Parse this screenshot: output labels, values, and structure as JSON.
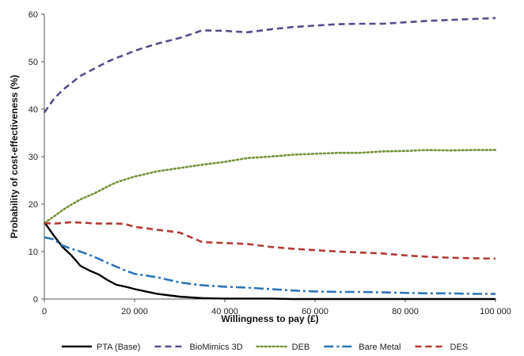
{
  "chart_data": {
    "type": "line",
    "title": "",
    "xlabel": "Willingness to pay (£)",
    "ylabel": "Probability of cost-effectiveness (%)",
    "xlim": [
      0,
      100000
    ],
    "ylim": [
      0,
      60
    ],
    "x_ticks": [
      0,
      20000,
      40000,
      60000,
      80000,
      100000
    ],
    "x_tick_labels": [
      "0",
      "20 000",
      "40 000",
      "60 000",
      "80 000",
      "100 000"
    ],
    "y_ticks": [
      0,
      10,
      20,
      30,
      40,
      50,
      60
    ],
    "y_tick_labels": [
      "0",
      "10",
      "20",
      "30",
      "40",
      "50",
      "60"
    ],
    "grid": false,
    "legend_position": "bottom",
    "x": [
      0,
      2000,
      4000,
      6000,
      8000,
      10000,
      12000,
      14000,
      16000,
      18000,
      20000,
      25000,
      30000,
      35000,
      40000,
      45000,
      50000,
      55000,
      60000,
      65000,
      70000,
      75000,
      80000,
      85000,
      90000,
      95000,
      100000
    ],
    "series": [
      {
        "name": "PTA (Base)",
        "color": "#000000",
        "dash": "solid",
        "values": [
          16.2,
          13.5,
          11.0,
          9.2,
          7.0,
          6.0,
          5.2,
          4.0,
          3.0,
          2.6,
          2.1,
          1.1,
          0.5,
          0.2,
          0.1,
          0.1,
          0.1,
          0.0,
          0.0,
          0.0,
          0.0,
          0.0,
          0.0,
          0.0,
          0.0,
          0.0,
          0.0
        ]
      },
      {
        "name": "BioMimics 3D",
        "color": "#5b4a8b",
        "dash": "dash",
        "values": [
          39.3,
          42.0,
          44.0,
          45.5,
          47.0,
          48.0,
          49.0,
          50.0,
          50.8,
          51.5,
          52.3,
          53.8,
          55.0,
          56.6,
          56.5,
          56.2,
          56.8,
          57.3,
          57.6,
          57.9,
          58.0,
          58.0,
          58.3,
          58.6,
          58.8,
          59.0,
          59.2
        ]
      },
      {
        "name": "DEB",
        "color": "#77933c",
        "dash": "dot",
        "values": [
          16.0,
          17.3,
          18.7,
          19.9,
          21.0,
          21.8,
          22.7,
          23.7,
          24.6,
          25.2,
          25.8,
          26.9,
          27.6,
          28.3,
          28.9,
          29.7,
          30.0,
          30.4,
          30.6,
          30.8,
          30.8,
          31.1,
          31.2,
          31.4,
          31.3,
          31.4,
          31.4
        ]
      },
      {
        "name": "Bare Metal",
        "color": "#2e75b6",
        "dash": "dashdot",
        "values": [
          13.0,
          12.6,
          11.3,
          10.6,
          10.0,
          9.3,
          8.5,
          7.6,
          6.8,
          6.0,
          5.3,
          4.6,
          3.5,
          2.9,
          2.6,
          2.4,
          2.1,
          1.8,
          1.6,
          1.5,
          1.5,
          1.4,
          1.3,
          1.2,
          1.2,
          1.1,
          1.1
        ]
      },
      {
        "name": "DES",
        "color": "#b03a36",
        "dash": "dash",
        "values": [
          16.0,
          15.9,
          16.0,
          16.2,
          16.1,
          16.0,
          15.9,
          15.9,
          15.9,
          15.8,
          15.2,
          14.6,
          14.0,
          12.0,
          11.8,
          11.6,
          11.0,
          10.6,
          10.3,
          10.0,
          9.8,
          9.6,
          9.2,
          8.9,
          8.7,
          8.6,
          8.5
        ]
      }
    ]
  }
}
